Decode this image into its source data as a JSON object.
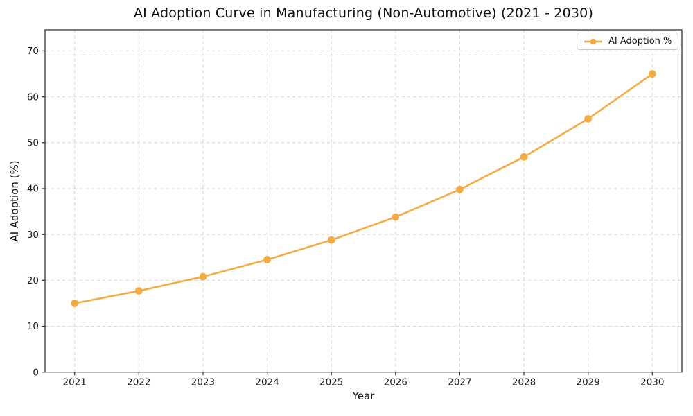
{
  "figure": {
    "title": "AI Adoption Curve in Manufacturing (Non-Automotive) (2021 - 2030)",
    "xlabel": "Year",
    "ylabel": "AI Adoption (%)"
  },
  "legend": {
    "label": "AI Adoption %"
  },
  "colors": {
    "line": "#F3AB45",
    "marker": "#F3AB45",
    "grid": "#d3d3d3",
    "axis": "#262626",
    "text": "#111111",
    "tick_text": "#1a1a1a",
    "legend_border": "#cccccc",
    "background": "#ffffff"
  },
  "chart_data": {
    "type": "line",
    "title": "AI Adoption Curve in Manufacturing (Non-Automotive) (2021 - 2030)",
    "xlabel": "Year",
    "ylabel": "AI Adoption (%)",
    "categories": [
      "2021",
      "2022",
      "2023",
      "2024",
      "2025",
      "2026",
      "2027",
      "2028",
      "2029",
      "2030"
    ],
    "series": [
      {
        "name": "AI Adoption %",
        "values": [
          15.0,
          17.7,
          20.8,
          24.5,
          28.8,
          33.8,
          39.8,
          46.9,
          55.2,
          65.0
        ],
        "color": "#F3AB45",
        "marker": "circle",
        "linestyle": "solid"
      }
    ],
    "ylim": [
      0,
      74.6
    ],
    "yticks": [
      0,
      10,
      20,
      30,
      40,
      50,
      60,
      70
    ],
    "grid": true,
    "grid_style": "dashed",
    "legend_position": "upper right"
  }
}
